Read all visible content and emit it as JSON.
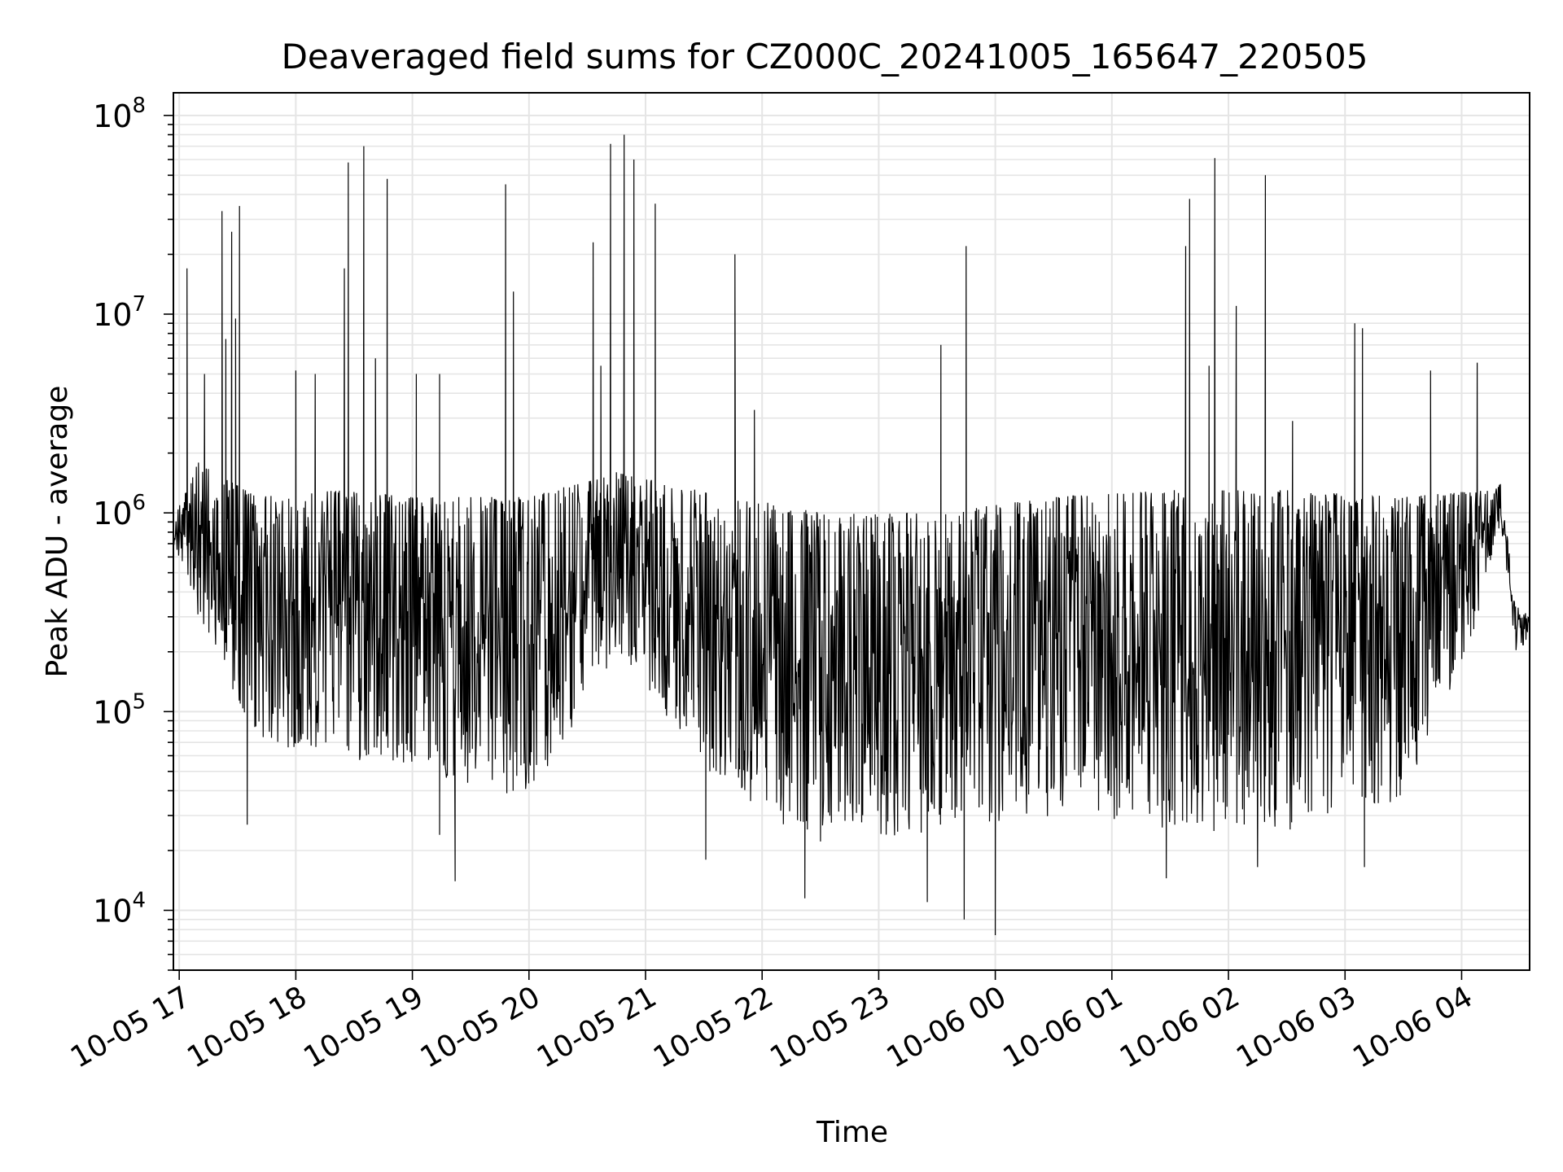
{
  "chart_data": {
    "type": "line",
    "title": "Deaveraged field sums for CZ000C_20241005_165647_220505",
    "xlabel": "Time",
    "ylabel": "Peak ADU - average",
    "yscale": "log",
    "ylim": [
      5000,
      130000000
    ],
    "xlim": [
      "2024-10-05 16:57",
      "2024-10-06 04:35"
    ],
    "grid": true,
    "line_color": "#000000",
    "grid_color": "#e5e5e5",
    "x_ticks": [
      {
        "t": "2024-10-05 17:00",
        "label": "10-05 17"
      },
      {
        "t": "2024-10-05 18:00",
        "label": "10-05 18"
      },
      {
        "t": "2024-10-05 19:00",
        "label": "10-05 19"
      },
      {
        "t": "2024-10-05 20:00",
        "label": "10-05 20"
      },
      {
        "t": "2024-10-05 21:00",
        "label": "10-05 21"
      },
      {
        "t": "2024-10-05 22:00",
        "label": "10-05 22"
      },
      {
        "t": "2024-10-05 23:00",
        "label": "10-05 23"
      },
      {
        "t": "2024-10-06 00:00",
        "label": "10-06 00"
      },
      {
        "t": "2024-10-06 01:00",
        "label": "10-06 01"
      },
      {
        "t": "2024-10-06 02:00",
        "label": "10-06 02"
      },
      {
        "t": "2024-10-06 03:00",
        "label": "10-06 03"
      },
      {
        "t": "2024-10-06 04:00",
        "label": "10-06 04"
      }
    ],
    "y_ticks": [
      {
        "value": 10000,
        "base": "10",
        "exp": "4"
      },
      {
        "value": 100000,
        "base": "10",
        "exp": "5"
      },
      {
        "value": 1000000,
        "base": "10",
        "exp": "6"
      },
      {
        "value": 10000000,
        "base": "10",
        "exp": "7"
      },
      {
        "value": 100000000,
        "base": "10",
        "exp": "8"
      }
    ],
    "spikes": [
      {
        "t": "2024-10-05 17:04",
        "y": 17000000
      },
      {
        "t": "2024-10-05 17:13",
        "y": 5000000
      },
      {
        "t": "2024-10-05 17:22",
        "y": 33000000
      },
      {
        "t": "2024-10-05 17:24",
        "y": 7500000
      },
      {
        "t": "2024-10-05 17:27",
        "y": 26000000
      },
      {
        "t": "2024-10-05 17:29",
        "y": 9500000
      },
      {
        "t": "2024-10-05 17:31",
        "y": 35000000
      },
      {
        "t": "2024-10-05 18:00",
        "y": 5200000
      },
      {
        "t": "2024-10-05 18:10",
        "y": 5000000
      },
      {
        "t": "2024-10-05 18:25",
        "y": 17000000
      },
      {
        "t": "2024-10-05 18:27",
        "y": 58000000
      },
      {
        "t": "2024-10-05 18:35",
        "y": 70000000
      },
      {
        "t": "2024-10-05 18:41",
        "y": 6000000
      },
      {
        "t": "2024-10-05 18:47",
        "y": 48000000
      },
      {
        "t": "2024-10-05 19:02",
        "y": 5000000
      },
      {
        "t": "2024-10-05 19:14",
        "y": 5000000
      },
      {
        "t": "2024-10-05 19:48",
        "y": 45000000
      },
      {
        "t": "2024-10-05 19:52",
        "y": 13000000
      },
      {
        "t": "2024-10-05 20:33",
        "y": 23000000
      },
      {
        "t": "2024-10-05 20:37",
        "y": 5500000
      },
      {
        "t": "2024-10-05 20:42",
        "y": 72000000
      },
      {
        "t": "2024-10-05 20:49",
        "y": 80000000
      },
      {
        "t": "2024-10-05 20:54",
        "y": 60000000
      },
      {
        "t": "2024-10-05 21:05",
        "y": 36000000
      },
      {
        "t": "2024-10-05 21:46",
        "y": 20000000
      },
      {
        "t": "2024-10-05 21:56",
        "y": 3300000
      },
      {
        "t": "2024-10-05 23:32",
        "y": 7000000
      },
      {
        "t": "2024-10-05 23:45",
        "y": 22000000
      },
      {
        "t": "2024-10-06 01:38",
        "y": 22000000
      },
      {
        "t": "2024-10-06 01:40",
        "y": 38000000
      },
      {
        "t": "2024-10-06 01:50",
        "y": 5500000
      },
      {
        "t": "2024-10-06 01:53",
        "y": 61000000
      },
      {
        "t": "2024-10-06 02:04",
        "y": 11000000
      },
      {
        "t": "2024-10-06 02:19",
        "y": 50000000
      },
      {
        "t": "2024-10-06 02:33",
        "y": 2900000
      },
      {
        "t": "2024-10-06 03:05",
        "y": 9000000
      },
      {
        "t": "2024-10-06 03:09",
        "y": 8500000
      },
      {
        "t": "2024-10-06 03:44",
        "y": 5200000
      },
      {
        "t": "2024-10-06 04:08",
        "y": 5700000
      }
    ],
    "dips": [
      {
        "t": "2024-10-05 17:35",
        "y": 27000
      },
      {
        "t": "2024-10-05 19:14",
        "y": 24000
      },
      {
        "t": "2024-10-05 19:22",
        "y": 14000
      },
      {
        "t": "2024-10-05 21:31",
        "y": 18000
      },
      {
        "t": "2024-10-05 22:22",
        "y": 11500
      },
      {
        "t": "2024-10-05 23:25",
        "y": 11000
      },
      {
        "t": "2024-10-05 23:44",
        "y": 9000
      },
      {
        "t": "2024-10-06 00:00",
        "y": 7500
      },
      {
        "t": "2024-10-06 01:28",
        "y": 14500
      },
      {
        "t": "2024-10-06 02:15",
        "y": 16500
      },
      {
        "t": "2024-10-06 03:10",
        "y": 16500
      }
    ],
    "envelope": [
      {
        "t": "2024-10-05 16:57",
        "low": 700000,
        "high": 1000000
      },
      {
        "t": "2024-10-05 17:10",
        "low": 300000,
        "high": 1800000
      },
      {
        "t": "2024-10-05 17:40",
        "low": 70000,
        "high": 1200000
      },
      {
        "t": "2024-10-05 18:20",
        "low": 60000,
        "high": 1300000
      },
      {
        "t": "2024-10-05 19:00",
        "low": 50000,
        "high": 1200000
      },
      {
        "t": "2024-10-05 20:00",
        "low": 35000,
        "high": 1200000
      },
      {
        "t": "2024-10-05 20:45",
        "low": 200000,
        "high": 1600000
      },
      {
        "t": "2024-10-05 21:30",
        "low": 50000,
        "high": 1300000
      },
      {
        "t": "2024-10-05 22:30",
        "low": 20000,
        "high": 1000000
      },
      {
        "t": "2024-10-05 23:30",
        "low": 25000,
        "high": 1000000
      },
      {
        "t": "2024-10-06 00:30",
        "low": 30000,
        "high": 1200000
      },
      {
        "t": "2024-10-06 01:30",
        "low": 25000,
        "high": 1300000
      },
      {
        "t": "2024-10-06 02:30",
        "low": 25000,
        "high": 1300000
      },
      {
        "t": "2024-10-06 03:30",
        "low": 35000,
        "high": 1200000
      },
      {
        "t": "2024-10-06 04:10",
        "low": 300000,
        "high": 1300000
      },
      {
        "t": "2024-10-06 04:20",
        "low": 900000,
        "high": 1400000
      },
      {
        "t": "2024-10-06 04:28",
        "low": 200000,
        "high": 350000
      },
      {
        "t": "2024-10-06 04:35",
        "low": 230000,
        "high": 300000
      }
    ]
  }
}
